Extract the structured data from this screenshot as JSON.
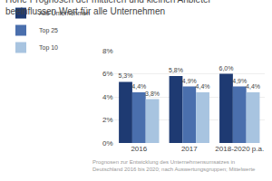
{
  "chart_data": {
    "type": "bar",
    "title": "Hohe Prognosen der mittleren und kleinen Anbieter",
    "subtitle": "beeinflussen Wert für alle Unternehmen",
    "annotations": [
      "Prognosen zur Entwicklung des Unternehmensumsatzes in Deutschland 2016 bis 2020; nach Auswertungsgruppen; Mittelwerte"
    ],
    "categories": [
      "2016",
      "2017",
      "2018-2020 p.a."
    ],
    "series": [
      {
        "name": "Alle Unternehmen",
        "color": "#1e3a72",
        "values": [
          5.3,
          5.8,
          6.0
        ],
        "value_labels": [
          "5,3%",
          "5,8%",
          "6,0%"
        ]
      },
      {
        "name": "Top 25",
        "color": "#4a6fad",
        "values": [
          4.4,
          4.9,
          4.9
        ],
        "value_labels": [
          "4,4%",
          "4,9%",
          "4,9%"
        ]
      },
      {
        "name": "Top 10",
        "color": "#a8c4e0",
        "values": [
          3.8,
          4.4,
          4.4
        ],
        "value_labels": [
          "3,8%",
          "4,4%",
          "4,4%"
        ]
      }
    ],
    "ylim": [
      0,
      8
    ],
    "yticks": [
      {
        "value": 0,
        "label": "0%"
      },
      {
        "value": 2,
        "label": "2%"
      },
      {
        "value": 4,
        "label": "4%"
      },
      {
        "value": 6,
        "label": "6%"
      },
      {
        "value": 8,
        "label": "8%"
      }
    ],
    "grid": true,
    "legend": "top",
    "data_labels": true
  }
}
